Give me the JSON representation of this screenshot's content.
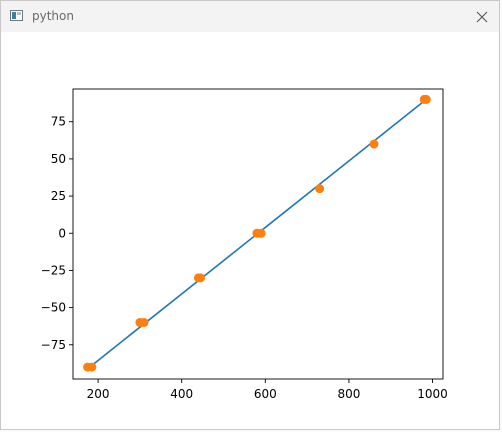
{
  "window": {
    "title": "python",
    "app_icon": "python-window-icon",
    "close_icon": "close-icon"
  },
  "chart_data": {
    "type": "line",
    "title": "",
    "xlabel": "",
    "ylabel": "",
    "xlim": [
      140,
      1025
    ],
    "ylim": [
      -98,
      97
    ],
    "xticks": [
      200,
      400,
      600,
      800,
      1000
    ],
    "xtick_labels": [
      "200",
      "400",
      "600",
      "800",
      "1000"
    ],
    "yticks": [
      -75,
      -50,
      -25,
      0,
      25,
      50,
      75
    ],
    "ytick_labels": [
      "−75",
      "−50",
      "−25",
      "0",
      "25",
      "50",
      "75"
    ],
    "grid": false,
    "series": [
      {
        "style": "line",
        "color": "#1f77b4",
        "x": [
          180,
          985
        ],
        "y": [
          -90,
          90
        ]
      },
      {
        "style": "scatter",
        "color": "#ff7f0e",
        "x": [
          175,
          185,
          300,
          310,
          440,
          445,
          580,
          590,
          730,
          860,
          980,
          985
        ],
        "y": [
          -90,
          -90,
          -60,
          -60,
          -30,
          -30,
          0,
          0,
          30,
          60,
          90,
          90
        ]
      }
    ]
  }
}
